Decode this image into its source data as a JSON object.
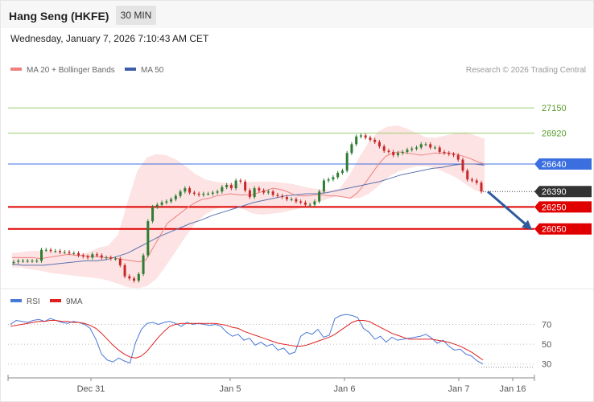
{
  "header": {
    "title": "Hang Seng (HKFE)",
    "timeframe": "30 MIN"
  },
  "datetime": "Wednesday, January 7, 2026 7:10:43 AM CET",
  "legend": {
    "items": [
      {
        "label": "MA 20 + Bollinger Bands",
        "color": "#f08080"
      },
      {
        "label": "MA 50",
        "color": "#3b5ea6"
      }
    ],
    "copyright": "Research © 2026 Trading Central"
  },
  "rsi_legend": {
    "items": [
      {
        "label": "RSI",
        "color": "#4a78d8"
      },
      {
        "label": "9MA",
        "color": "#e02020"
      }
    ]
  },
  "colors": {
    "up": "#2e7d32",
    "down": "#c62828",
    "resistance": "#9acd6e",
    "pivot": "#3b6fe0",
    "support": "#e00000",
    "current": "#333333",
    "arrow": "#2d5a9c"
  },
  "chart_data": [
    {
      "type": "candlestick",
      "title": "Hang Seng (HKFE) 30 MIN",
      "ylim": [
        25500,
        27400
      ],
      "x_ticks": [
        "Dec 31",
        "Jan 5",
        "Jan 6",
        "Jan 7",
        "Jan 16"
      ],
      "levels": [
        {
          "label": "27150",
          "value": 27150,
          "kind": "resistance"
        },
        {
          "label": "26920",
          "value": 26920,
          "kind": "resistance"
        },
        {
          "label": "26640",
          "value": 26640,
          "kind": "pivot"
        },
        {
          "label": "26390",
          "value": 26390,
          "kind": "current"
        },
        {
          "label": "26250",
          "value": 26250,
          "kind": "support"
        },
        {
          "label": "26050",
          "value": 26050,
          "kind": "support"
        }
      ],
      "close": [
        25750,
        25760,
        25760,
        25760,
        25760,
        25760,
        25860,
        25860,
        25850,
        25850,
        25840,
        25840,
        25830,
        25830,
        25810,
        25800,
        25790,
        25820,
        25810,
        25790,
        25790,
        25780,
        25780,
        25720,
        25620,
        25600,
        25580,
        25640,
        25810,
        26120,
        26250,
        26270,
        26290,
        26300,
        26320,
        26350,
        26390,
        26420,
        26380,
        26370,
        26360,
        26370,
        26370,
        26380,
        26390,
        26430,
        26450,
        26420,
        26490,
        26480,
        26400,
        26340,
        26420,
        26400,
        26380,
        26390,
        26360,
        26350,
        26340,
        26320,
        26320,
        26300,
        26290,
        26270,
        26270,
        26300,
        26390,
        26490,
        26500,
        26520,
        26560,
        26580,
        26740,
        26820,
        26890,
        26900,
        26880,
        26860,
        26840,
        26800,
        26760,
        26750,
        26720,
        26740,
        26750,
        26770,
        26780,
        26790,
        26820,
        26820,
        26790,
        26790,
        26750,
        26740,
        26730,
        26720,
        26680,
        26580,
        26500,
        26490,
        26470,
        26390
      ],
      "ma20": [
        25790,
        25790,
        25790,
        25790,
        25780,
        25790,
        25800,
        25810,
        25820,
        25810,
        25810,
        25800,
        25800,
        25790,
        25790,
        25780,
        25770,
        25760,
        25750,
        25770,
        25880,
        25990,
        26100,
        26150,
        26200,
        26250,
        26290,
        26320,
        26330,
        26350,
        26360,
        26370,
        26360,
        26360,
        26360,
        26380,
        26400,
        26420,
        26410,
        26390,
        26360,
        26350,
        26350,
        26360,
        26360,
        26350,
        26350,
        26340,
        26330,
        26380,
        26460,
        26550,
        26640,
        26710,
        26740,
        26750,
        26740,
        26730,
        26720,
        26730,
        26740,
        26740,
        26740,
        26730,
        26710,
        26690,
        26660,
        26640
      ],
      "ma50": [
        25730,
        25720,
        25720,
        25720,
        25730,
        25740,
        25750,
        25760,
        25760,
        25770,
        25800,
        25830,
        25880,
        25930,
        25980,
        26020,
        26060,
        26100,
        26130,
        26170,
        26200,
        26230,
        26260,
        26290,
        26310,
        26330,
        26350,
        26360,
        26370,
        26370,
        26380,
        26400,
        26420,
        26440,
        26460,
        26480,
        26510,
        26540,
        26560,
        26580,
        26600,
        26610,
        26630,
        26640,
        26640,
        26630
      ],
      "bb_upper": [
        25830,
        25840,
        25850,
        25850,
        25850,
        25840,
        25830,
        25820,
        25840,
        25880,
        25900,
        26000,
        26300,
        26580,
        26700,
        26730,
        26720,
        26680,
        26620,
        26550,
        26500,
        26480,
        26470,
        26460,
        26470,
        26480,
        26480,
        26480,
        26470,
        26460,
        26440,
        26420,
        26410,
        26400,
        26420,
        26540,
        26700,
        26840,
        26940,
        26980,
        26990,
        26960,
        26920,
        26880,
        26880,
        26900,
        26920,
        26930,
        26900,
        26870
      ],
      "bb_lower": [
        25700,
        25700,
        25680,
        25670,
        25650,
        25640,
        25630,
        25620,
        25610,
        25600,
        25580,
        25550,
        25520,
        25510,
        25530,
        25600,
        25720,
        25850,
        25980,
        26100,
        26180,
        26230,
        26250,
        26250,
        26230,
        26190,
        26180,
        26190,
        26200,
        26220,
        26240,
        26270,
        26300,
        26330,
        26350,
        26330,
        26330,
        26370,
        26440,
        26520,
        26570,
        26600,
        26620,
        26620,
        26600,
        26560,
        26520,
        26460,
        26400,
        26380
      ]
    },
    {
      "type": "line",
      "title": "RSI",
      "ylim": [
        20,
        85
      ],
      "y_ticks": [
        "70",
        "50",
        "30"
      ],
      "series": [
        {
          "name": "RSI",
          "values": [
            70,
            74,
            73,
            72,
            74,
            75,
            73,
            76,
            74,
            72,
            71,
            73,
            72,
            70,
            66,
            55,
            40,
            34,
            32,
            36,
            33,
            31,
            52,
            65,
            71,
            72,
            70,
            72,
            73,
            71,
            68,
            72,
            70,
            71,
            70,
            69,
            70,
            68,
            62,
            58,
            60,
            54,
            56,
            49,
            52,
            48,
            50,
            44,
            46,
            40,
            42,
            58,
            62,
            60,
            65,
            57,
            59,
            76,
            79,
            80,
            79,
            77,
            66,
            62,
            55,
            58,
            52,
            57,
            54,
            55,
            56,
            57,
            58,
            60,
            56,
            51,
            54,
            48,
            44,
            45,
            40,
            38,
            33,
            30
          ]
        },
        {
          "name": "9MA",
          "values": [
            68,
            69,
            70,
            71,
            72,
            73,
            73,
            74,
            74,
            73,
            73,
            72,
            72,
            71,
            69,
            66,
            61,
            55,
            49,
            44,
            40,
            37,
            36,
            38,
            43,
            50,
            57,
            63,
            68,
            70,
            71,
            71,
            71,
            71,
            71,
            71,
            71,
            70,
            69,
            67,
            66,
            63,
            61,
            59,
            57,
            55,
            53,
            51,
            50,
            49,
            48,
            48,
            49,
            51,
            53,
            55,
            57,
            60,
            64,
            68,
            72,
            74,
            74,
            73,
            70,
            67,
            64,
            61,
            59,
            57,
            55,
            55,
            55,
            55,
            55,
            54,
            53,
            52,
            50,
            48,
            45,
            42,
            38,
            34
          ]
        }
      ]
    }
  ]
}
